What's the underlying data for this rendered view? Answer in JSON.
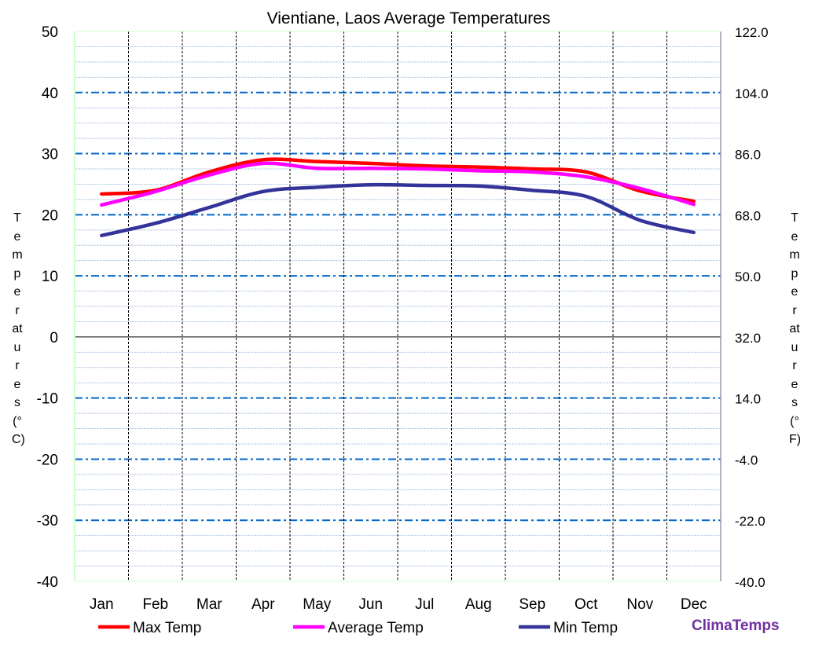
{
  "chart_data": {
    "type": "line",
    "title": "Vientiane, Laos Average Temperatures",
    "categories": [
      "Jan",
      "Feb",
      "Mar",
      "Apr",
      "May",
      "Jun",
      "Jul",
      "Aug",
      "Sep",
      "Oct",
      "Nov",
      "Dec"
    ],
    "ylabel": "Temperatures (°C)",
    "y2label": "Temperatures (°F)",
    "ylim": [
      -40,
      50
    ],
    "yticks": [
      50,
      40,
      30,
      20,
      10,
      0,
      -10,
      -20,
      -30,
      -40
    ],
    "y2ticks": [
      "122.0",
      "104.0",
      "86.0",
      "68.0",
      "50.0",
      "32.0",
      "14.0",
      "-4.0",
      "-22.0",
      "-40.0"
    ],
    "grid": true,
    "legend": "bottom",
    "series": [
      {
        "name": "Max Temp",
        "color": "#ff0000",
        "values": [
          23.4,
          24.0,
          27.0,
          29.0,
          28.7,
          28.4,
          28.0,
          27.8,
          27.5,
          27.0,
          23.9,
          22.2
        ]
      },
      {
        "name": "Average Temp",
        "color": "#ff00ff",
        "values": [
          21.6,
          23.8,
          26.5,
          28.4,
          27.6,
          27.6,
          27.5,
          27.2,
          27.0,
          26.2,
          24.3,
          21.7
        ]
      },
      {
        "name": "Min Temp",
        "color": "#333399",
        "values": [
          16.6,
          18.6,
          21.2,
          23.8,
          24.5,
          24.9,
          24.8,
          24.7,
          24.0,
          23.0,
          19.1,
          17.1
        ]
      }
    ]
  },
  "brand": "ClimaTemps"
}
